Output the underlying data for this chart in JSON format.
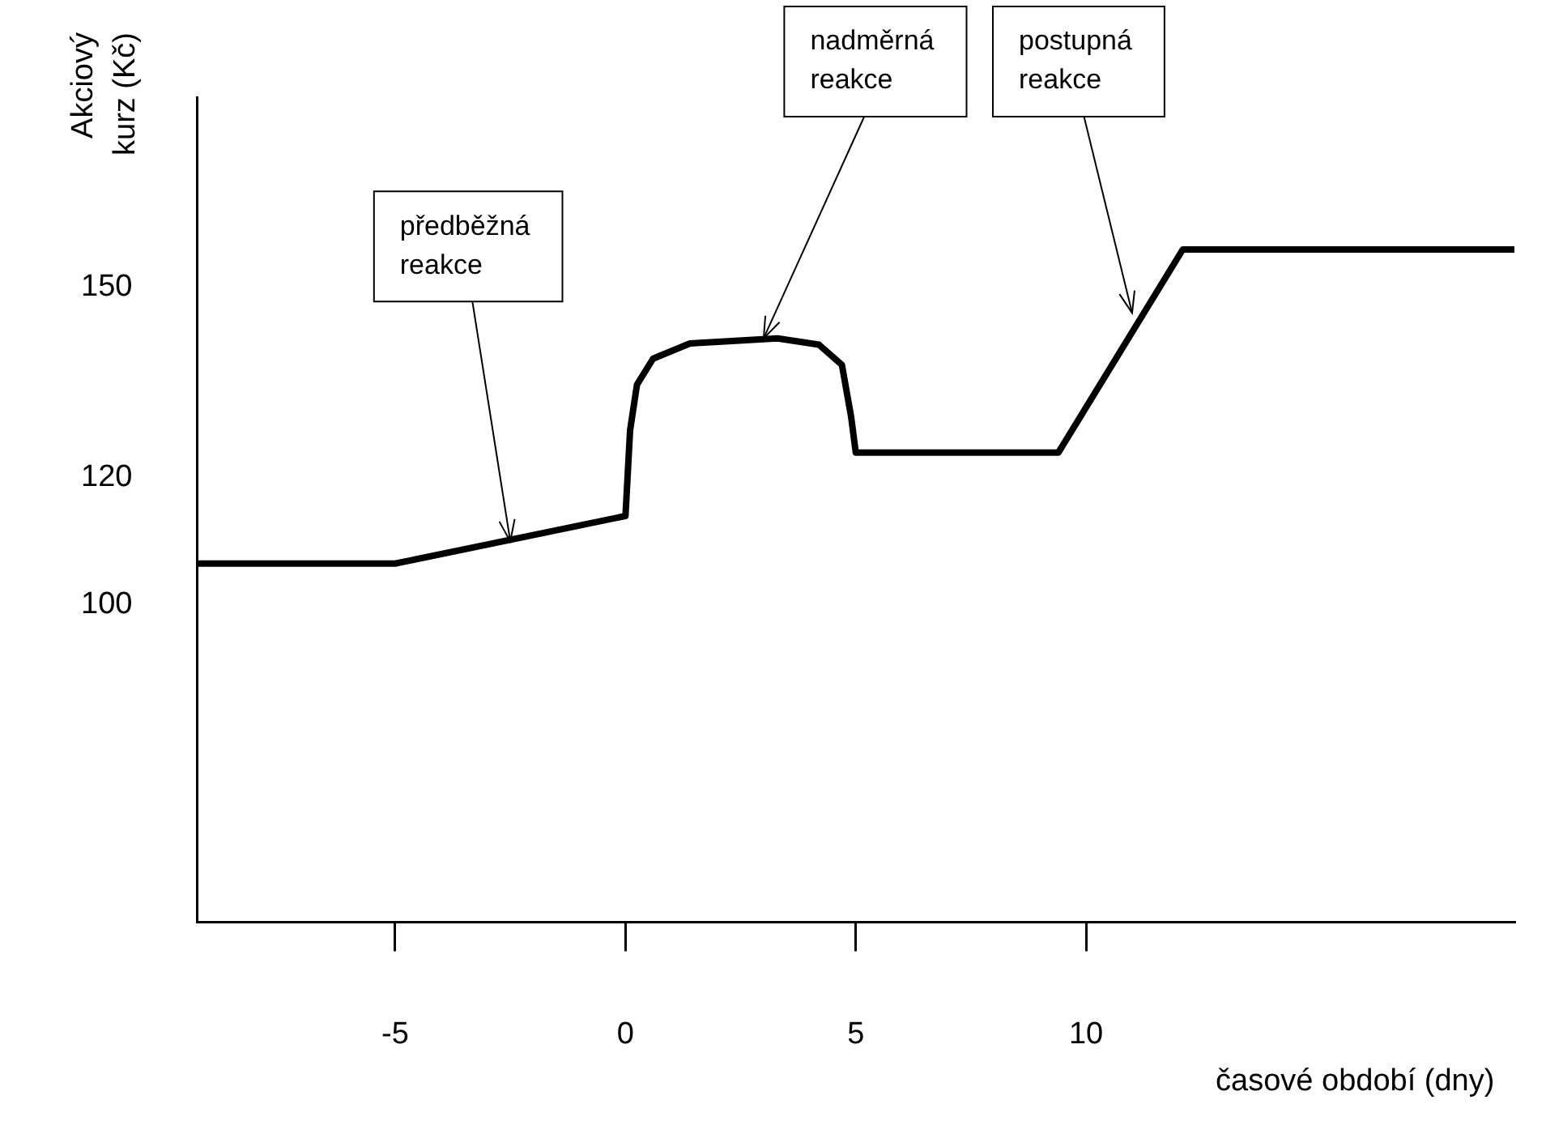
{
  "chart_data": {
    "type": "line",
    "xlabel": "časové období (dny)",
    "ylabel": "Akciový kurz (Kč)",
    "xlim": [
      -9.3,
      19.3
    ],
    "ylim": [
      50,
      180
    ],
    "xticks": [
      -5,
      0,
      5,
      10
    ],
    "yticks": [
      100,
      120,
      150
    ],
    "grid": false,
    "legend": false,
    "marker": "none",
    "line_style": "solid",
    "series": [
      {
        "color": "#000000",
        "x": [
          -9.3,
          -5,
          0,
          0.1,
          0.25,
          0.6,
          1.4,
          3.3,
          4.2,
          4.7,
          4.9,
          5,
          9.4,
          12.1,
          19.3
        ],
        "values": [
          106.5,
          106.5,
          114,
          127.5,
          134.7,
          138.8,
          141.2,
          142,
          141,
          137.8,
          129.6,
          124,
          124,
          156,
          156
        ]
      }
    ],
    "annotations": [
      {
        "text": "předběžná reakce",
        "x": -2.5,
        "y": 110
      },
      {
        "text": "nadměrná reakce",
        "x": 3,
        "y": 142
      },
      {
        "text": "postupná reakce",
        "x": 11,
        "y": 146
      }
    ]
  }
}
